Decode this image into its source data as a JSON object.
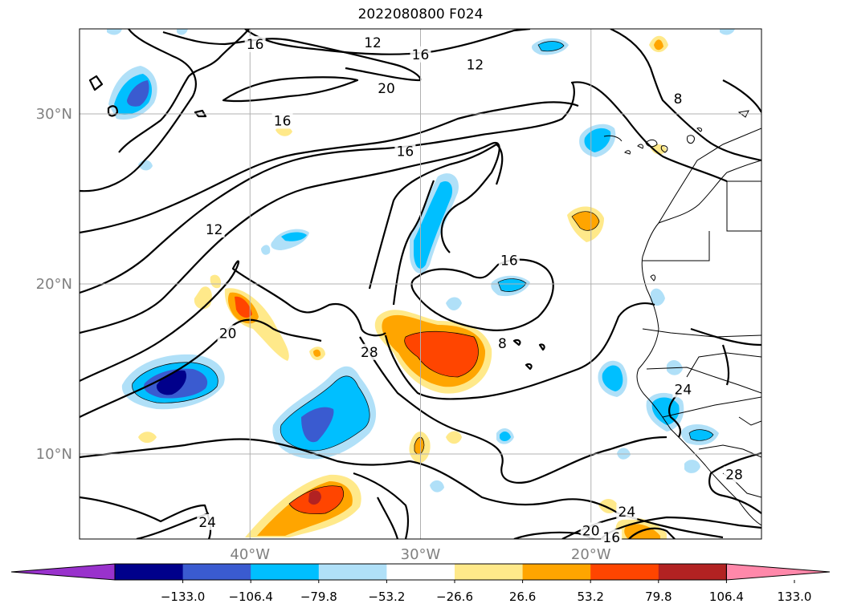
{
  "chart_data": {
    "type": "contour-map",
    "title": "2022080800 F024",
    "lon_range": [
      -50,
      -10
    ],
    "lat_range": [
      5,
      35
    ],
    "x_ticks": [
      {
        "value": -40,
        "label": "40°W"
      },
      {
        "value": -30,
        "label": "30°W"
      },
      {
        "value": -20,
        "label": "20°W"
      }
    ],
    "y_ticks": [
      {
        "value": 30,
        "label": "30°N"
      },
      {
        "value": 20,
        "label": "20°N"
      },
      {
        "value": 10,
        "label": "10°N"
      }
    ],
    "grid": true,
    "colorbar": {
      "orientation": "horizontal",
      "extend": "both",
      "ticks": [
        "−133.0",
        "−106.4",
        "−79.8",
        "−53.2",
        "−26.6",
        "26.6",
        "53.2",
        "79.8",
        "106.4",
        "133.0"
      ],
      "colors": [
        "#9932cc",
        "#00008b",
        "#3a5bd0",
        "#00bfff",
        "#b0e0f8",
        "#ffffff",
        "#ffe98a",
        "#ffa500",
        "#ff4500",
        "#b22222",
        "#ff88aa"
      ]
    },
    "contour_labels": [
      {
        "text": "16",
        "lon": -39.7,
        "lat": 34.1
      },
      {
        "text": "12",
        "lon": -32.8,
        "lat": 34.2
      },
      {
        "text": "16",
        "lon": -30.0,
        "lat": 33.5
      },
      {
        "text": "12",
        "lon": -26.8,
        "lat": 32.9
      },
      {
        "text": "20",
        "lon": -32.0,
        "lat": 31.5
      },
      {
        "text": "8",
        "lon": -14.9,
        "lat": 30.9
      },
      {
        "text": "16",
        "lon": -38.1,
        "lat": 29.6
      },
      {
        "text": "16",
        "lon": -30.9,
        "lat": 27.8
      },
      {
        "text": "12",
        "lon": -42.1,
        "lat": 23.2
      },
      {
        "text": "16",
        "lon": -24.8,
        "lat": 21.4
      },
      {
        "text": "20",
        "lon": -41.3,
        "lat": 17.1
      },
      {
        "text": "28",
        "lon": -33.0,
        "lat": 16.0
      },
      {
        "text": "8",
        "lon": -25.2,
        "lat": 16.5
      },
      {
        "text": "24",
        "lon": -42.5,
        "lat": 6.0
      },
      {
        "text": "24",
        "lon": -17.9,
        "lat": 6.6
      },
      {
        "text": "20",
        "lon": -20.0,
        "lat": 5.5
      },
      {
        "text": "16",
        "lon": -18.8,
        "lat": 5.1
      },
      {
        "text": "28",
        "lon": -11.6,
        "lat": 8.8
      },
      {
        "text": "24",
        "lon": -14.6,
        "lat": 13.8
      }
    ]
  }
}
